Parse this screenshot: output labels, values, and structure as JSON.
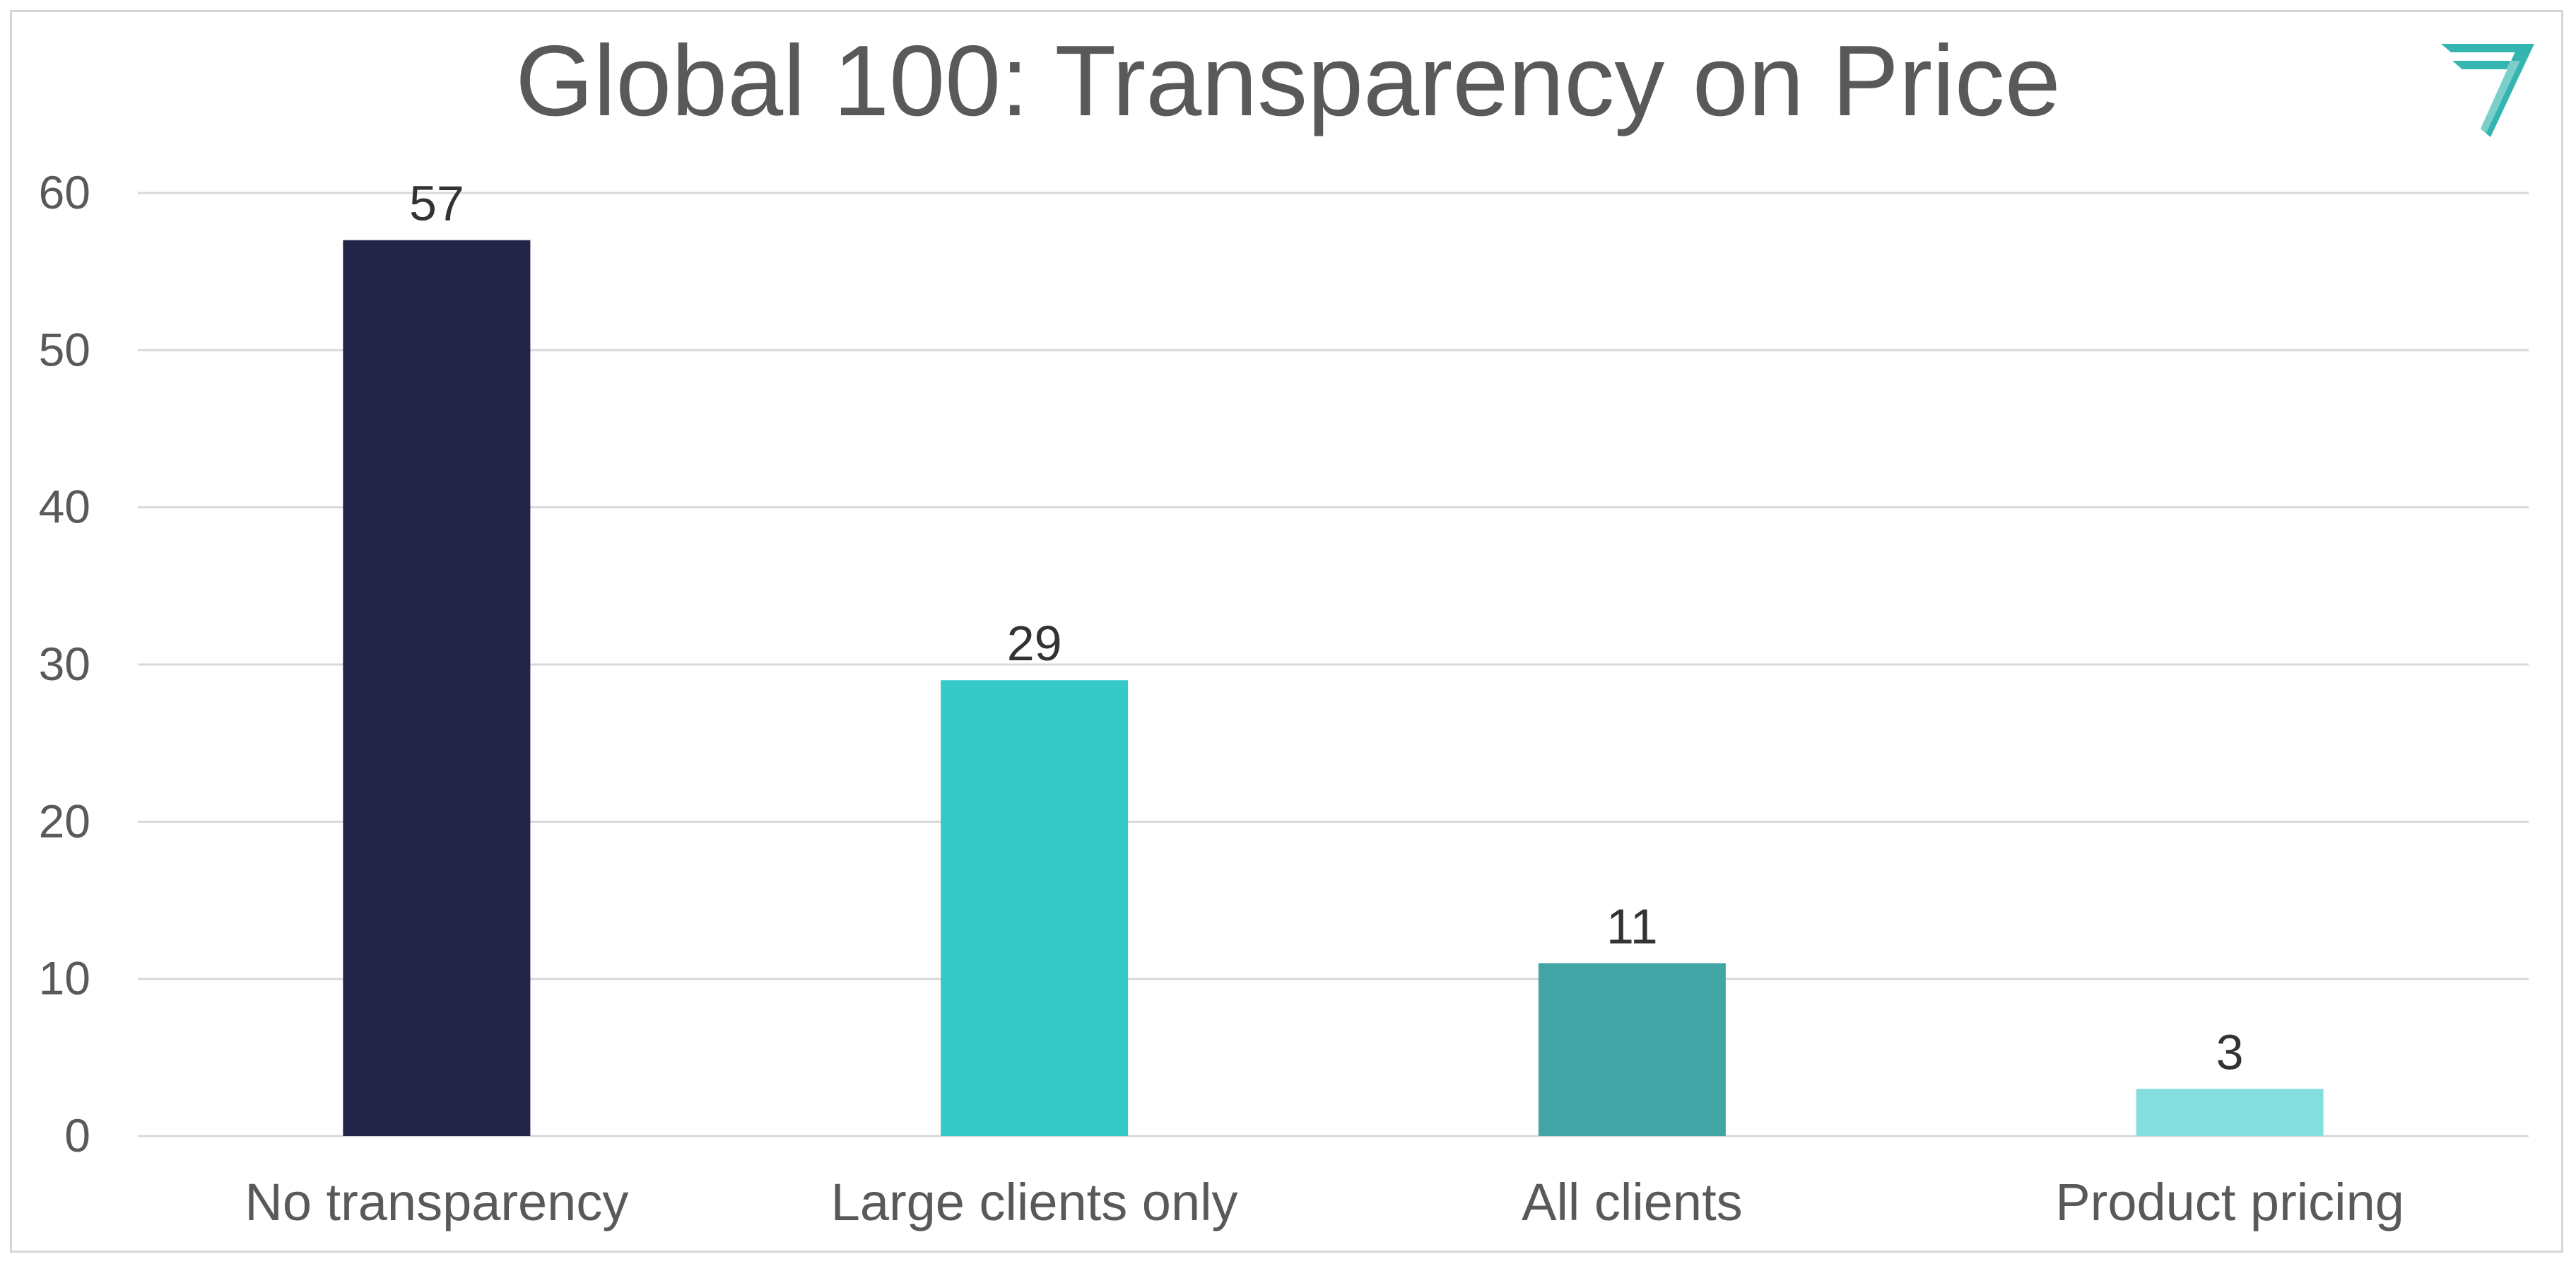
{
  "chart_data": {
    "type": "bar",
    "title": "Global 100: Transparency on Price",
    "xlabel": "",
    "ylabel": "",
    "categories": [
      "No transparency",
      "Large clients only",
      "All clients",
      "Product pricing"
    ],
    "values": [
      57,
      29,
      11,
      3
    ],
    "bar_colors": [
      "#222447",
      "#35c9c8",
      "#42a5a5",
      "#84dede"
    ],
    "ylim": [
      0,
      60
    ],
    "yticks": [
      0,
      10,
      20,
      30,
      40,
      50,
      60
    ],
    "grid": true,
    "legend": "none",
    "data_labels": true
  },
  "style": {
    "grid_color": "#d9d9d9",
    "text_color": "#595959",
    "logo_color": "#35b5b0"
  },
  "logo": {
    "icon": "brand-logo-icon"
  }
}
